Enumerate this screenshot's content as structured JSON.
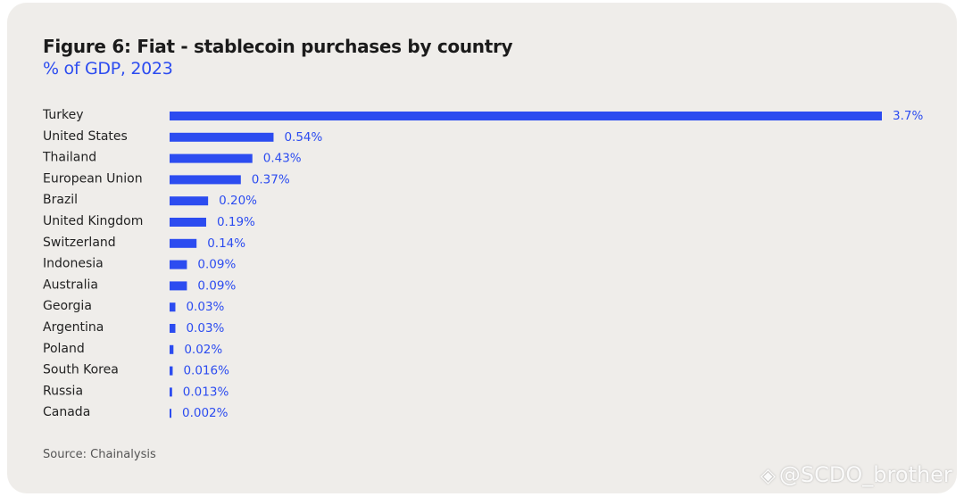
{
  "chart_data": {
    "type": "bar",
    "orientation": "horizontal",
    "title": "Figure 6: Fiat - stablecoin purchases by country",
    "subtitle": "% of GDP, 2023",
    "categories": [
      "Turkey",
      "United States",
      "Thailand",
      "European Union",
      "Brazil",
      "United Kingdom",
      "Switzerland",
      "Indonesia",
      "Australia",
      "Georgia",
      "Argentina",
      "Poland",
      "South Korea",
      "Russia",
      "Canada"
    ],
    "values": [
      3.7,
      0.54,
      0.43,
      0.37,
      0.2,
      0.19,
      0.14,
      0.09,
      0.09,
      0.03,
      0.03,
      0.02,
      0.016,
      0.013,
      0.002
    ],
    "value_labels": [
      "3.7%",
      "0.54%",
      "0.43%",
      "0.37%",
      "0.20%",
      "0.19%",
      "0.14%",
      "0.09%",
      "0.09%",
      "0.03%",
      "0.03%",
      "0.02%",
      "0.016%",
      "0.013%",
      "0.002%"
    ],
    "bar_color": "#2c4cf0",
    "xlim": [
      0,
      3.7
    ],
    "grid": false,
    "legend": "none"
  },
  "source": "Source: Chainalysis",
  "watermark": {
    "logo_icon": "binance-logo-icon",
    "text": "@SCDO_brother"
  }
}
